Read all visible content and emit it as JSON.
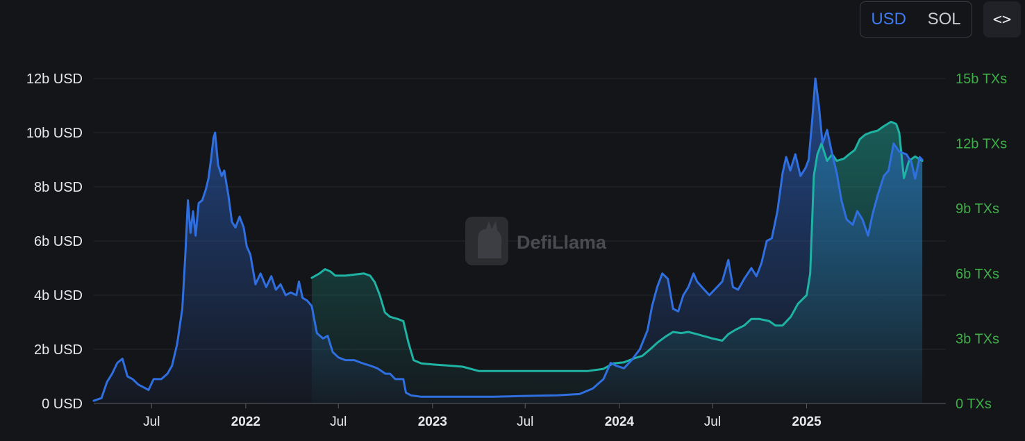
{
  "controls": {
    "currency_options": [
      {
        "label": "USD",
        "active": true
      },
      {
        "label": "SOL",
        "active": false
      }
    ],
    "embed_icon": "code-brackets-icon",
    "embed_label": "<>"
  },
  "watermark": {
    "text": "DefiLlama",
    "icon": "llama-logo-icon"
  },
  "colors": {
    "background": "#141519",
    "usd_line": "#2f6fe0",
    "tx_line": "#1fb3a3",
    "left_axis_text": "#e8e9ec",
    "right_axis_text": "#3fae48"
  },
  "chart_data": {
    "type": "line",
    "x_range": [
      "2021-03-10",
      "2025-09-30"
    ],
    "y_left": {
      "range": [
        0,
        12
      ],
      "unit": "billion USD",
      "ticks": [
        {
          "value": 0,
          "label": "0 USD"
        },
        {
          "value": 2,
          "label": "2b USD"
        },
        {
          "value": 4,
          "label": "4b USD"
        },
        {
          "value": 6,
          "label": "6b USD"
        },
        {
          "value": 8,
          "label": "8b USD"
        },
        {
          "value": 10,
          "label": "10b USD"
        },
        {
          "value": 12,
          "label": "12b USD"
        }
      ]
    },
    "y_right": {
      "range": [
        0,
        15
      ],
      "unit": "billion TXs",
      "ticks": [
        {
          "value": 0,
          "label": "0 TXs"
        },
        {
          "value": 3,
          "label": "3b TXs"
        },
        {
          "value": 6,
          "label": "6b TXs"
        },
        {
          "value": 9,
          "label": "9b TXs"
        },
        {
          "value": 12,
          "label": "12b TXs"
        },
        {
          "value": 15,
          "label": "15b TXs"
        }
      ]
    },
    "x_ticks": [
      {
        "date": "2021-07-01",
        "label": "Jul",
        "bold": false
      },
      {
        "date": "2022-01-01",
        "label": "2022",
        "bold": true
      },
      {
        "date": "2022-07-01",
        "label": "Jul",
        "bold": false
      },
      {
        "date": "2023-01-01",
        "label": "2023",
        "bold": true
      },
      {
        "date": "2023-07-01",
        "label": "Jul",
        "bold": false
      },
      {
        "date": "2024-01-01",
        "label": "2024",
        "bold": true
      },
      {
        "date": "2024-07-01",
        "label": "Jul",
        "bold": false
      },
      {
        "date": "2025-01-01",
        "label": "2025",
        "bold": true
      }
    ],
    "grid": true,
    "series": [
      {
        "axis": "left",
        "color": "#2f6fe0",
        "points": [
          [
            "2021-03-10",
            0.1
          ],
          [
            "2021-03-25",
            0.2
          ],
          [
            "2021-04-05",
            0.8
          ],
          [
            "2021-04-15",
            1.1
          ],
          [
            "2021-04-25",
            1.5
          ],
          [
            "2021-05-05",
            1.65
          ],
          [
            "2021-05-15",
            1.0
          ],
          [
            "2021-05-25",
            0.9
          ],
          [
            "2021-06-05",
            0.7
          ],
          [
            "2021-06-15",
            0.6
          ],
          [
            "2021-06-25",
            0.5
          ],
          [
            "2021-07-05",
            0.9
          ],
          [
            "2021-07-20",
            0.9
          ],
          [
            "2021-08-01",
            1.1
          ],
          [
            "2021-08-10",
            1.4
          ],
          [
            "2021-08-20",
            2.2
          ],
          [
            "2021-08-30",
            3.5
          ],
          [
            "2021-09-05",
            5.5
          ],
          [
            "2021-09-10",
            7.5
          ],
          [
            "2021-09-15",
            6.3
          ],
          [
            "2021-09-20",
            7.1
          ],
          [
            "2021-09-25",
            6.2
          ],
          [
            "2021-10-01",
            7.4
          ],
          [
            "2021-10-08",
            7.5
          ],
          [
            "2021-10-15",
            7.9
          ],
          [
            "2021-10-20",
            8.3
          ],
          [
            "2021-10-25",
            9.0
          ],
          [
            "2021-10-30",
            9.8
          ],
          [
            "2021-11-02",
            10.0
          ],
          [
            "2021-11-08",
            8.8
          ],
          [
            "2021-11-15",
            8.4
          ],
          [
            "2021-11-20",
            8.6
          ],
          [
            "2021-11-28",
            7.7
          ],
          [
            "2021-12-05",
            6.7
          ],
          [
            "2021-12-12",
            6.5
          ],
          [
            "2021-12-20",
            6.9
          ],
          [
            "2021-12-28",
            6.5
          ],
          [
            "2022-01-03",
            5.8
          ],
          [
            "2022-01-10",
            5.5
          ],
          [
            "2022-01-20",
            4.4
          ],
          [
            "2022-01-30",
            4.8
          ],
          [
            "2022-02-10",
            4.3
          ],
          [
            "2022-02-20",
            4.7
          ],
          [
            "2022-03-01",
            4.2
          ],
          [
            "2022-03-10",
            4.4
          ],
          [
            "2022-03-20",
            4.0
          ],
          [
            "2022-03-30",
            4.1
          ],
          [
            "2022-04-10",
            4.0
          ],
          [
            "2022-04-15",
            4.5
          ],
          [
            "2022-04-22",
            3.9
          ],
          [
            "2022-05-01",
            3.8
          ],
          [
            "2022-05-10",
            3.6
          ],
          [
            "2022-05-20",
            2.6
          ],
          [
            "2022-06-01",
            2.4
          ],
          [
            "2022-06-10",
            2.5
          ],
          [
            "2022-06-20",
            1.9
          ],
          [
            "2022-07-01",
            1.7
          ],
          [
            "2022-07-15",
            1.6
          ],
          [
            "2022-08-01",
            1.6
          ],
          [
            "2022-08-15",
            1.5
          ],
          [
            "2022-09-01",
            1.4
          ],
          [
            "2022-09-15",
            1.3
          ],
          [
            "2022-10-01",
            1.1
          ],
          [
            "2022-10-10",
            1.1
          ],
          [
            "2022-10-20",
            0.9
          ],
          [
            "2022-11-05",
            0.9
          ],
          [
            "2022-11-10",
            0.4
          ],
          [
            "2022-11-20",
            0.3
          ],
          [
            "2022-12-10",
            0.25
          ],
          [
            "2023-01-15",
            0.25
          ],
          [
            "2023-03-01",
            0.25
          ],
          [
            "2023-05-01",
            0.25
          ],
          [
            "2023-07-01",
            0.28
          ],
          [
            "2023-09-01",
            0.3
          ],
          [
            "2023-10-15",
            0.35
          ],
          [
            "2023-11-10",
            0.55
          ],
          [
            "2023-12-01",
            0.9
          ],
          [
            "2023-12-15",
            1.5
          ],
          [
            "2023-12-25",
            1.4
          ],
          [
            "2024-01-10",
            1.3
          ],
          [
            "2024-01-25",
            1.6
          ],
          [
            "2024-02-10",
            2.0
          ],
          [
            "2024-02-25",
            2.7
          ],
          [
            "2024-03-05",
            3.6
          ],
          [
            "2024-03-15",
            4.3
          ],
          [
            "2024-03-25",
            4.8
          ],
          [
            "2024-04-05",
            4.6
          ],
          [
            "2024-04-15",
            3.5
          ],
          [
            "2024-04-25",
            3.4
          ],
          [
            "2024-05-05",
            4.0
          ],
          [
            "2024-05-15",
            4.3
          ],
          [
            "2024-05-25",
            4.8
          ],
          [
            "2024-06-01",
            4.5
          ],
          [
            "2024-06-15",
            4.2
          ],
          [
            "2024-06-25",
            4.0
          ],
          [
            "2024-07-05",
            4.2
          ],
          [
            "2024-07-20",
            4.5
          ],
          [
            "2024-08-01",
            5.3
          ],
          [
            "2024-08-10",
            4.3
          ],
          [
            "2024-08-20",
            4.2
          ],
          [
            "2024-09-01",
            4.6
          ],
          [
            "2024-09-15",
            5.0
          ],
          [
            "2024-09-25",
            4.7
          ],
          [
            "2024-10-05",
            5.2
          ],
          [
            "2024-10-15",
            6.0
          ],
          [
            "2024-10-25",
            6.1
          ],
          [
            "2024-11-05",
            7.1
          ],
          [
            "2024-11-15",
            8.5
          ],
          [
            "2024-11-22",
            9.1
          ],
          [
            "2024-11-30",
            8.6
          ],
          [
            "2024-12-10",
            9.2
          ],
          [
            "2024-12-20",
            8.4
          ],
          [
            "2024-12-30",
            8.7
          ],
          [
            "2025-01-05",
            9.0
          ],
          [
            "2025-01-12",
            10.5
          ],
          [
            "2025-01-18",
            12.0
          ],
          [
            "2025-01-25",
            11.0
          ],
          [
            "2025-02-01",
            9.6
          ],
          [
            "2025-02-10",
            10.1
          ],
          [
            "2025-02-20",
            9.2
          ],
          [
            "2025-03-01",
            8.5
          ],
          [
            "2025-03-10",
            7.5
          ],
          [
            "2025-03-20",
            6.8
          ],
          [
            "2025-04-01",
            6.6
          ],
          [
            "2025-04-10",
            7.1
          ],
          [
            "2025-04-20",
            6.8
          ],
          [
            "2025-05-01",
            6.2
          ],
          [
            "2025-05-10",
            7.0
          ],
          [
            "2025-05-20",
            7.7
          ],
          [
            "2025-06-01",
            8.4
          ],
          [
            "2025-06-10",
            8.6
          ],
          [
            "2025-06-20",
            9.6
          ],
          [
            "2025-07-01",
            9.3
          ],
          [
            "2025-07-15",
            9.2
          ],
          [
            "2025-07-25",
            8.9
          ],
          [
            "2025-08-01",
            8.3
          ],
          [
            "2025-08-10",
            9.1
          ],
          [
            "2025-08-15",
            9.0
          ]
        ]
      },
      {
        "axis": "right",
        "color": "#1fb3a3",
        "points": [
          [
            "2022-05-10",
            5.8
          ],
          [
            "2022-05-25",
            6.0
          ],
          [
            "2022-06-05",
            6.2
          ],
          [
            "2022-06-15",
            6.1
          ],
          [
            "2022-06-25",
            5.9
          ],
          [
            "2022-07-15",
            5.9
          ],
          [
            "2022-08-01",
            5.95
          ],
          [
            "2022-08-20",
            6.0
          ],
          [
            "2022-09-01",
            5.9
          ],
          [
            "2022-09-10",
            5.6
          ],
          [
            "2022-09-20",
            5.0
          ],
          [
            "2022-09-30",
            4.2
          ],
          [
            "2022-10-10",
            4.0
          ],
          [
            "2022-10-25",
            3.9
          ],
          [
            "2022-11-05",
            3.8
          ],
          [
            "2022-11-15",
            2.8
          ],
          [
            "2022-11-25",
            2.0
          ],
          [
            "2022-12-10",
            1.85
          ],
          [
            "2023-01-01",
            1.8
          ],
          [
            "2023-02-01",
            1.75
          ],
          [
            "2023-03-01",
            1.7
          ],
          [
            "2023-04-01",
            1.5
          ],
          [
            "2023-06-01",
            1.5
          ],
          [
            "2023-08-01",
            1.5
          ],
          [
            "2023-10-01",
            1.5
          ],
          [
            "2023-11-01",
            1.5
          ],
          [
            "2023-12-01",
            1.6
          ],
          [
            "2023-12-20",
            1.85
          ],
          [
            "2024-01-10",
            1.9
          ],
          [
            "2024-02-01",
            2.1
          ],
          [
            "2024-02-15",
            2.2
          ],
          [
            "2024-03-01",
            2.5
          ],
          [
            "2024-03-15",
            2.8
          ],
          [
            "2024-04-01",
            3.1
          ],
          [
            "2024-04-15",
            3.3
          ],
          [
            "2024-05-01",
            3.25
          ],
          [
            "2024-05-15",
            3.3
          ],
          [
            "2024-06-01",
            3.2
          ],
          [
            "2024-07-01",
            3.0
          ],
          [
            "2024-07-20",
            2.9
          ],
          [
            "2024-08-01",
            3.2
          ],
          [
            "2024-08-15",
            3.4
          ],
          [
            "2024-09-01",
            3.6
          ],
          [
            "2024-09-15",
            3.9
          ],
          [
            "2024-10-01",
            3.9
          ],
          [
            "2024-10-20",
            3.8
          ],
          [
            "2024-11-01",
            3.6
          ],
          [
            "2024-11-15",
            3.6
          ],
          [
            "2024-12-01",
            4.0
          ],
          [
            "2024-12-15",
            4.6
          ],
          [
            "2025-01-01",
            5.0
          ],
          [
            "2025-01-08",
            6.0
          ],
          [
            "2025-01-15",
            10.5
          ],
          [
            "2025-01-22",
            11.5
          ],
          [
            "2025-01-30",
            12.0
          ],
          [
            "2025-02-10",
            11.2
          ],
          [
            "2025-02-20",
            11.5
          ],
          [
            "2025-03-01",
            11.2
          ],
          [
            "2025-03-15",
            11.3
          ],
          [
            "2025-03-25",
            11.5
          ],
          [
            "2025-04-05",
            11.7
          ],
          [
            "2025-04-15",
            12.2
          ],
          [
            "2025-04-25",
            12.4
          ],
          [
            "2025-05-05",
            12.5
          ],
          [
            "2025-05-20",
            12.6
          ],
          [
            "2025-06-01",
            12.8
          ],
          [
            "2025-06-15",
            13.0
          ],
          [
            "2025-06-25",
            12.9
          ],
          [
            "2025-07-01",
            12.5
          ],
          [
            "2025-07-10",
            10.4
          ],
          [
            "2025-07-20",
            11.2
          ],
          [
            "2025-08-01",
            11.4
          ],
          [
            "2025-08-15",
            11.2
          ]
        ]
      }
    ]
  }
}
